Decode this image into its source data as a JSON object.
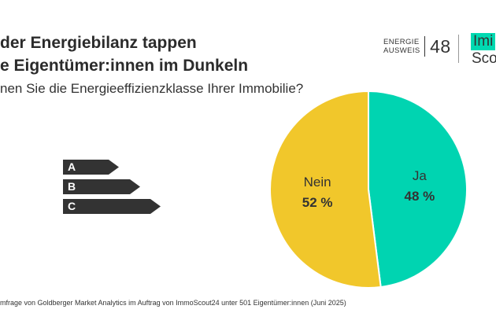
{
  "header": {
    "title_line1": "der Energiebilanz tappen",
    "title_line2": "e Eigentümer:innen im Dunkeln",
    "question": "nen Sie die Energieeffizienzklasse Ihrer Immobilie?"
  },
  "logos": {
    "energie_word1": "ENERGIE",
    "energie_word2": "AUSWEIS",
    "energie_number": "48",
    "scout_top": "Imi",
    "scout_bottom": "Scou",
    "scout_accent": "#00d9b1"
  },
  "efficiency_labels": [
    "A",
    "B",
    "C"
  ],
  "chart_data": {
    "type": "pie",
    "title": "nen Sie die Energieeffizienzklasse Ihrer Immobilie?",
    "slices": [
      {
        "name": "Ja",
        "value": 48,
        "label": "48 %",
        "color": "#00d4b1"
      },
      {
        "name": "Nein",
        "value": 52,
        "label": "52 %",
        "color": "#f1c72b"
      }
    ],
    "unit": "%"
  },
  "footnote": "mfrage von Goldberger Market Analytics im Auftrag von ImmoScout24 unter 501 Eigentümer:innen (Juni 2025)"
}
